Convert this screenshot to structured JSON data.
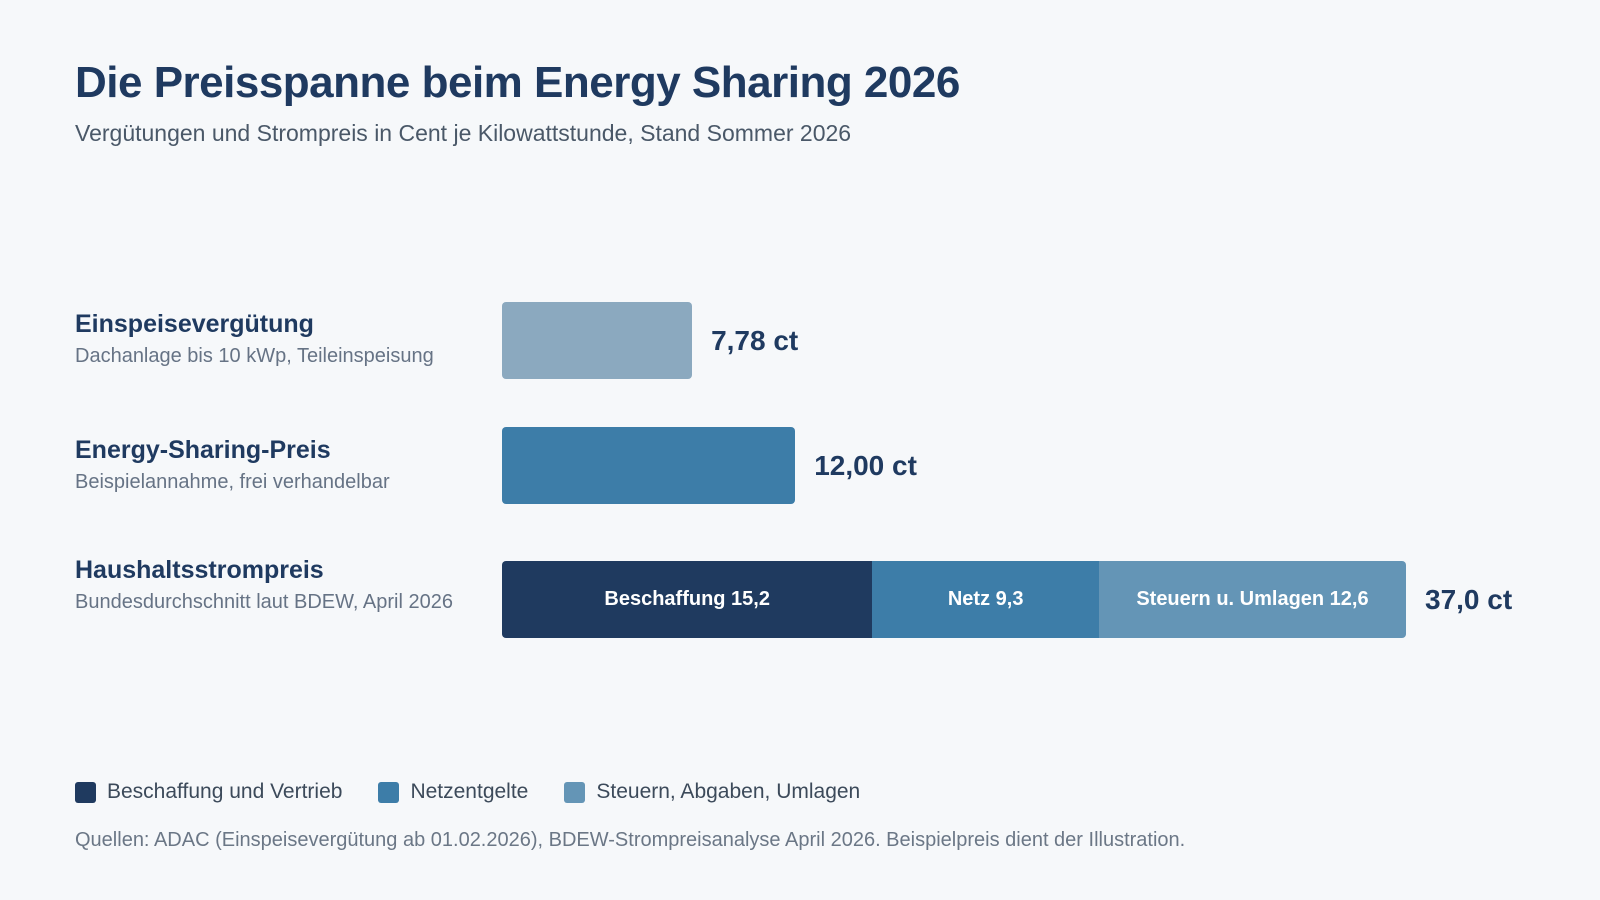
{
  "title": "Die Preisspanne beim Energy Sharing 2026",
  "subtitle": "Vergütungen und Strompreis in Cent je Kilowattstunde, Stand Sommer 2026",
  "chart_data": {
    "type": "bar",
    "orientation": "horizontal",
    "unit": "ct/kWh",
    "xlim": [
      0,
      37.0
    ],
    "grid": false,
    "legend_placement": "bottom-left",
    "rows": [
      {
        "name": "Einspeisevergütung",
        "description": "Dachanlage bis 10 kWp, Teileinspeisung",
        "value": 7.78,
        "value_label": "7,78 ct",
        "color": "#8ba9bf"
      },
      {
        "name": "Energy-Sharing-Preis",
        "description": "Beispielannahme, frei verhandelbar",
        "value": 12.0,
        "value_label": "12,00 ct",
        "color": "#3d7da8"
      },
      {
        "name": "Haushaltsstrompreis",
        "description": "Bundesdurchschnitt laut BDEW, April 2026",
        "value": 37.0,
        "value_label": "37,0 ct",
        "segments": [
          {
            "label": "Beschaffung 15,2",
            "value": 15.2,
            "color": "#1f3a5f"
          },
          {
            "label": "Netz 9,3",
            "value": 9.3,
            "color": "#3d7da8"
          },
          {
            "label": "Steuern u. Umlagen 12,6",
            "value": 12.6,
            "color": "#6495b6"
          }
        ]
      }
    ],
    "legend": [
      {
        "label": "Beschaffung und Vertrieb",
        "color": "#1f3a5f"
      },
      {
        "label": "Netzentgelte",
        "color": "#3d7da8"
      },
      {
        "label": "Steuern, Abgaben, Umlagen",
        "color": "#6495b6"
      }
    ]
  },
  "source": "Quellen: ADAC (Einspeisevergütung ab 01.02.2026), BDEW-Strompreisanalyse April 2026. Beispielpreis dient der Illustration."
}
